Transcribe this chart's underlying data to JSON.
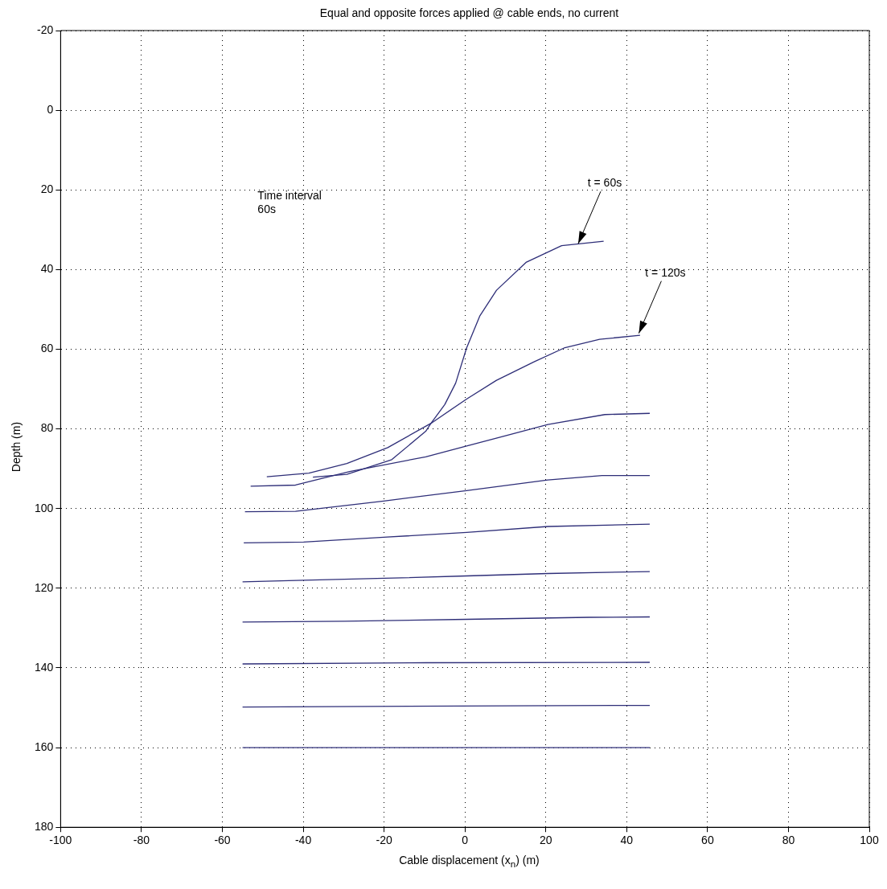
{
  "chart_data": {
    "type": "line",
    "title": "Equal and opposite forces applied @ cable ends, no current",
    "xlabel": "Cable displacement (x$_{n}$) (m)",
    "ylabel": "Depth (m)",
    "xlim": [
      -100,
      100
    ],
    "xticks": [
      -100,
      -80,
      -60,
      -40,
      -20,
      0,
      20,
      40,
      60,
      80,
      100
    ],
    "ylim": [
      180,
      -20
    ],
    "yticks": [
      -20,
      0,
      20,
      40,
      60,
      80,
      100,
      120,
      140,
      160,
      180
    ],
    "grid": true,
    "legend": false,
    "marker": "none",
    "line_style": "solid",
    "annotations": [
      "Time interval\n60s",
      {
        "text": "t = 60s",
        "x": 28,
        "y": 33.5
      },
      {
        "text": "t = 120s",
        "x": 43,
        "y": 56
      }
    ],
    "series": [
      {
        "color": "#2e2e78",
        "x": [
          -37.6,
          -29.2,
          -18.1,
          -9.7,
          -8.4,
          -5,
          -2.3,
          0.4,
          3.7,
          7.8,
          15.1,
          23.9,
          34.3
        ],
        "values": [
          92.1,
          91.4,
          87.7,
          80.6,
          78.6,
          73.9,
          68.5,
          59.7,
          51.6,
          45.2,
          38.2,
          34,
          32.9
        ]
      },
      {
        "color": "#2e2e78",
        "x": [
          -49,
          -38.6,
          -29.2,
          -19.1,
          -8.4,
          0.4,
          7.8,
          17.2,
          24.5,
          33.3,
          43.3
        ],
        "values": [
          92,
          91.1,
          88.7,
          84.7,
          78.6,
          72.5,
          67.8,
          63.1,
          59.7,
          57.5,
          56.5
        ]
      },
      {
        "color": "#2e2e78",
        "x": [
          -53,
          -41.9,
          -28.5,
          -9.7,
          0.4,
          10.4,
          20.5,
          34.6,
          45.7
        ],
        "values": [
          94.4,
          94.1,
          90.7,
          87,
          84.3,
          81.6,
          78.9,
          76.4,
          76.1
        ]
      },
      {
        "color": "#2e2e78",
        "x": [
          -54.4,
          -41.9,
          -20.1,
          0.4,
          20.5,
          33.9,
          45.7
        ],
        "values": [
          100.8,
          100.7,
          98.1,
          95.5,
          92.8,
          91.7,
          91.7
        ]
      },
      {
        "color": "#2e2e78",
        "x": [
          -54.7,
          -39.9,
          -20.1,
          0.4,
          20.5,
          45.7
        ],
        "values": [
          108.6,
          108.4,
          107.2,
          106,
          104.5,
          103.9
        ]
      },
      {
        "color": "#2e2e78",
        "x": [
          -55,
          -39.9,
          -19.8,
          0.4,
          20.5,
          45.7
        ],
        "values": [
          118.4,
          118,
          117.5,
          116.9,
          116.3,
          115.8
        ]
      },
      {
        "color": "#2e2e78",
        "x": [
          -55,
          -29.8,
          0.4,
          30.6,
          45.7
        ],
        "values": [
          128.5,
          128.3,
          127.8,
          127.3,
          127.2
        ]
      },
      {
        "color": "#2e2e78",
        "x": [
          -55,
          -9.7,
          45.7
        ],
        "values": [
          139,
          138.7,
          138.6
        ]
      },
      {
        "color": "#2e2e78",
        "x": [
          -55,
          10.4,
          45.7
        ],
        "values": [
          149.8,
          149.5,
          149.4
        ]
      },
      {
        "color": "#2e2e78",
        "x": [
          -55,
          45.7
        ],
        "values": [
          160,
          160
        ]
      }
    ]
  }
}
